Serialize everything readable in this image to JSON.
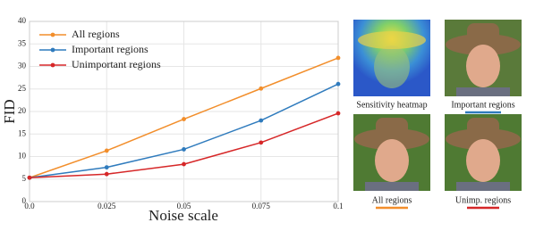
{
  "chart_data": {
    "type": "line",
    "x": [
      0,
      0.025,
      0.05,
      0.075,
      0.1
    ],
    "series": [
      {
        "name": "All regions",
        "color": "#f28e2b",
        "values": [
          5.3,
          11.3,
          18.3,
          25.1,
          31.9
        ]
      },
      {
        "name": "Important regions",
        "color": "#2f7bbd",
        "values": [
          5.3,
          7.6,
          11.6,
          18.0,
          26.1
        ]
      },
      {
        "name": "Unimportant regions",
        "color": "#d62728",
        "values": [
          5.3,
          6.1,
          8.3,
          13.1,
          19.6
        ]
      }
    ],
    "xlabel": "Noise scale",
    "ylabel": "FID",
    "xlim": [
      0,
      0.1
    ],
    "xticks": [
      {
        "value": 0,
        "label": "0.0"
      },
      0.025,
      0.05,
      0.075,
      0.1
    ],
    "ylim": [
      0,
      40
    ],
    "yticks": [
      0,
      5,
      10,
      15,
      20,
      25,
      30,
      35,
      40
    ],
    "grid": true,
    "legend": "upper left"
  },
  "panels": [
    {
      "caption": "Sensitivity heatmap"
    },
    {
      "caption": "Important regions"
    },
    {
      "caption": "All regions"
    },
    {
      "caption": "Unimp. regions"
    }
  ]
}
